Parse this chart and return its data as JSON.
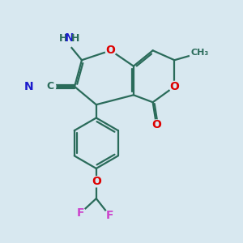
{
  "bg_color": "#d8e8f0",
  "bond_color": "#2a6b5a",
  "bond_width": 1.6,
  "dbo": 0.07,
  "atom_colors": {
    "O": "#dd0000",
    "N": "#1a1acc",
    "F": "#cc44cc",
    "C": "#2a6b5a",
    "H": "#2a6b5a"
  },
  "fs": 10
}
